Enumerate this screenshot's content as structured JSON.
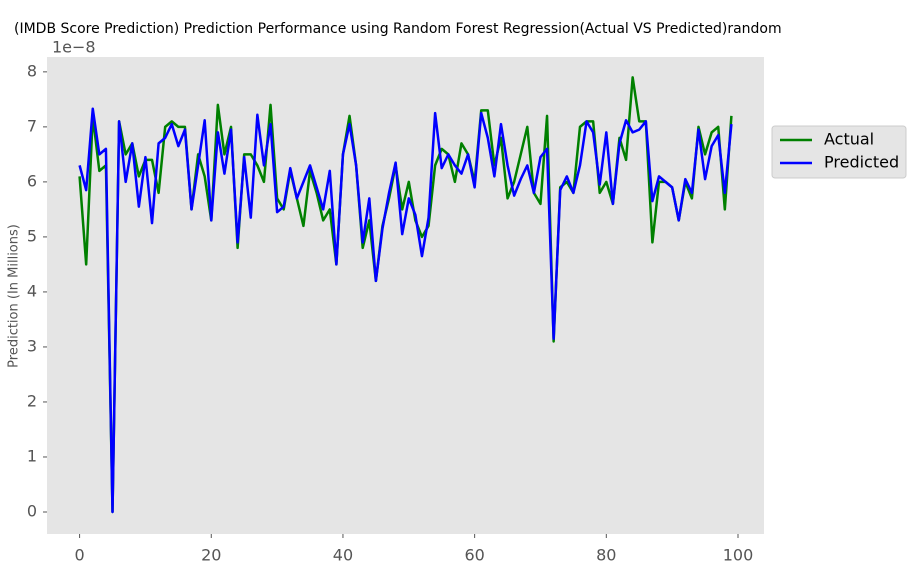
{
  "chart_data": {
    "type": "line",
    "title": "(IMDB Score Prediction) Prediction Performance using Random Forest Regression(Actual VS Predicted)random",
    "y_label": "Prediction (In Millions)",
    "y_offset_label": "1e−8",
    "x": [
      0,
      1,
      2,
      3,
      4,
      5,
      6,
      7,
      8,
      9,
      10,
      11,
      12,
      13,
      14,
      15,
      16,
      17,
      18,
      19,
      20,
      21,
      22,
      23,
      24,
      25,
      26,
      27,
      28,
      29,
      30,
      31,
      32,
      33,
      34,
      35,
      36,
      37,
      38,
      39,
      40,
      41,
      42,
      43,
      44,
      45,
      46,
      47,
      48,
      49,
      50,
      51,
      52,
      53,
      54,
      55,
      56,
      57,
      58,
      59,
      60,
      61,
      62,
      63,
      64,
      65,
      66,
      67,
      68,
      69,
      70,
      71,
      72,
      73,
      74,
      75,
      76,
      77,
      78,
      79,
      80,
      81,
      82,
      83,
      84,
      85,
      86,
      87,
      88,
      89,
      90,
      91,
      92,
      93,
      94,
      95,
      96,
      97,
      98,
      99
    ],
    "series": [
      {
        "name": "Actual",
        "color": "#008000",
        "values": [
          6.1,
          4.5,
          7.2,
          6.2,
          6.3,
          0.0,
          7.1,
          6.5,
          6.7,
          6.1,
          6.4,
          6.4,
          5.8,
          7.0,
          7.1,
          7.0,
          7.0,
          5.5,
          6.5,
          6.1,
          5.3,
          7.4,
          6.5,
          7.0,
          4.8,
          6.5,
          6.5,
          6.3,
          6.0,
          7.4,
          5.7,
          5.5,
          6.2,
          5.7,
          5.2,
          6.2,
          5.8,
          5.3,
          5.5,
          4.5,
          6.5,
          7.2,
          6.3,
          4.8,
          5.3,
          4.2,
          5.2,
          5.7,
          6.3,
          5.5,
          6.0,
          5.3,
          5.0,
          5.2,
          6.3,
          6.6,
          6.5,
          6.0,
          6.7,
          6.5,
          6.0,
          7.3,
          7.3,
          6.3,
          6.8,
          5.7,
          6.0,
          6.5,
          7.0,
          5.8,
          5.6,
          7.2,
          3.1,
          5.9,
          6.0,
          5.8,
          7.0,
          7.1,
          7.1,
          5.8,
          6.0,
          5.6,
          6.8,
          6.4,
          7.9,
          7.1,
          7.1,
          4.9,
          6.0,
          6.0,
          5.9,
          5.3,
          6.0,
          5.7,
          7.0,
          6.5,
          6.9,
          7.0,
          5.5,
          7.2
        ]
      },
      {
        "name": "Predicted",
        "color": "#0000ff",
        "values": [
          6.3,
          5.85,
          7.33,
          6.5,
          6.6,
          0.0,
          7.1,
          6.0,
          6.7,
          5.55,
          6.45,
          5.25,
          6.7,
          6.8,
          7.05,
          6.65,
          6.95,
          5.5,
          6.3,
          7.12,
          5.3,
          6.9,
          6.15,
          6.95,
          4.9,
          6.45,
          5.35,
          7.22,
          6.3,
          7.05,
          5.45,
          5.55,
          6.25,
          5.7,
          6.0,
          6.3,
          5.9,
          5.5,
          6.2,
          4.5,
          6.5,
          7.05,
          6.3,
          4.9,
          5.7,
          4.2,
          5.15,
          5.8,
          6.35,
          5.05,
          5.7,
          5.4,
          4.65,
          5.35,
          7.25,
          6.25,
          6.5,
          6.3,
          6.15,
          6.5,
          5.9,
          7.25,
          6.8,
          6.1,
          7.05,
          6.3,
          5.75,
          6.05,
          6.3,
          5.8,
          6.45,
          6.6,
          3.15,
          5.85,
          6.1,
          5.8,
          6.3,
          7.1,
          6.9,
          5.95,
          6.9,
          5.6,
          6.7,
          7.12,
          6.9,
          6.95,
          7.1,
          5.65,
          6.1,
          6.0,
          5.9,
          5.3,
          6.05,
          5.8,
          6.95,
          6.05,
          6.65,
          6.85,
          5.8,
          7.05
        ]
      }
    ],
    "xlim": [
      -4.95,
      103.95
    ],
    "xticks": [
      0,
      20,
      40,
      60,
      80,
      100
    ],
    "ylim": [
      -0.4,
      8.27
    ],
    "yticks": [
      0,
      1,
      2,
      3,
      4,
      5,
      6,
      7,
      8
    ],
    "grid": false,
    "legend": "right"
  }
}
